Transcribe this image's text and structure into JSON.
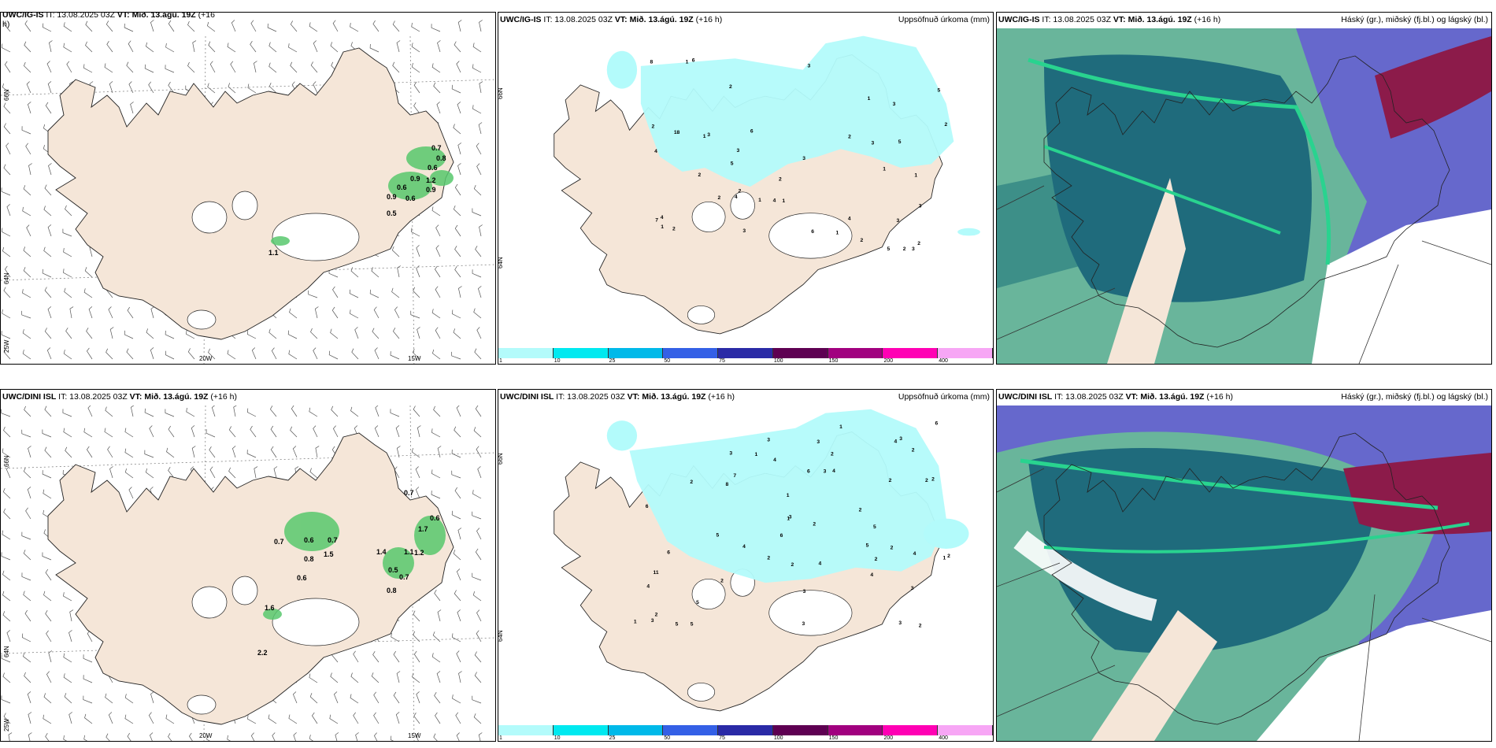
{
  "panels": {
    "top_left": {
      "title_model": "UWC/IG-IS",
      "title_it": "IT: 13.08.2025 03Z",
      "title_vt_label": "VT:",
      "title_vt": "Mið. 13.ágú. 19Z",
      "title_lead": "(+16",
      "title_lead_wrap": "h)",
      "lon_labels": [
        "20W",
        "15W"
      ],
      "lat_labels": [
        "66N",
        "64N",
        "25W"
      ],
      "values": [
        "0.7",
        "0.8",
        "0.6",
        "0.6",
        "0.9",
        "0.6",
        "0.5",
        "1.1",
        "0.9",
        "0.9",
        "1.2"
      ]
    },
    "top_mid": {
      "title_model": "UWC/IG-IS",
      "title_it": "IT: 13.08.2025 03Z",
      "title_vt_label": "VT:",
      "title_vt": "Mið. 13.ágú. 19Z",
      "title_lead": "(+16 h)",
      "right_title": "Uppsöfnuð úrkoma (mm)",
      "lat_labels": [
        "66N",
        "64N"
      ]
    },
    "top_right": {
      "title_model": "UWC/IG-IS",
      "title_it": "IT: 13.08.2025 03Z",
      "title_vt_label": "VT:",
      "title_vt": "Mið. 13.ágú. 19Z",
      "title_lead": "(+16 h)",
      "right_title": "Háský (gr.), miðský (fj.bl.) og lágský (bl.)"
    },
    "bottom_left": {
      "title_model": "UWC/DINI ISL",
      "title_it": "IT: 13.08.2025 03Z",
      "title_vt_label": "VT:",
      "title_vt": "Mið. 13.ágú. 19Z",
      "title_lead": "(+16 h)",
      "lon_labels": [
        "20W",
        "15W"
      ],
      "lat_labels": [
        "66N",
        "64N",
        "25W"
      ],
      "values": [
        "0.7",
        "0.7",
        "0.6",
        "0.7",
        "0.8",
        "1.5",
        "0.6",
        "1.4",
        "1.1",
        "1.2",
        "0.5",
        "0.7",
        "0.8",
        "1.6",
        "2.2",
        "0.6",
        "1.7"
      ]
    },
    "bottom_mid": {
      "title_model": "UWC/DINI ISL",
      "title_it": "IT: 13.08.2025 03Z",
      "title_vt_label": "VT:",
      "title_vt": "Mið. 13.ágú. 19Z",
      "title_lead": "(+16 h)",
      "right_title": "Uppsöfnuð úrkoma (mm)",
      "lat_labels": [
        "66N",
        "64N"
      ]
    },
    "bottom_right": {
      "title_model": "UWC/DINI ISL",
      "title_it": "IT: 13.08.2025 03Z",
      "title_vt_label": "VT:",
      "title_vt": "Mið. 13.ágú. 19Z",
      "title_lead": "(+16 h)",
      "right_title": "Háský (gr.), miðský (fj.bl.) og lágský (bl.)"
    }
  },
  "colorbar": {
    "ticks": [
      "1",
      "10",
      "25",
      "50",
      "75",
      "100",
      "150",
      "200",
      "400"
    ],
    "colors": [
      "#b3fbfb",
      "#00e9f0",
      "#00b9e9",
      "#3460e6",
      "#2a2aa6",
      "#5e0052",
      "#a1007f",
      "#ff00b4",
      "#f7a6f5"
    ]
  },
  "precip_numbers_top": [
    "2",
    "1",
    "1",
    "1",
    "3",
    "2",
    "4",
    "5",
    "4",
    "3",
    "5",
    "3",
    "8",
    "5",
    "3",
    "4",
    "3",
    "2",
    "5",
    "6",
    "2",
    "3",
    "1",
    "2",
    "3",
    "2",
    "6",
    "4",
    "3",
    "7",
    "2",
    "1",
    "2",
    "3",
    "1",
    "2",
    "18",
    "6",
    "2",
    "3",
    "4",
    "2",
    "1",
    "2",
    "1",
    "1"
  ],
  "precip_numbers_bottom": [
    "1",
    "2",
    "2",
    "3",
    "5",
    "6",
    "4",
    "3",
    "3",
    "5",
    "4",
    "2",
    "2",
    "6",
    "3",
    "4",
    "7",
    "5",
    "1",
    "2",
    "3",
    "4",
    "6",
    "5",
    "4",
    "3",
    "2",
    "4",
    "8",
    "2",
    "6",
    "11",
    "3",
    "2",
    "5",
    "2",
    "6",
    "3",
    "2",
    "1",
    "1",
    "3",
    "2",
    "3",
    "3",
    "2",
    "4",
    "2",
    "5",
    "2",
    "1",
    "1",
    "2",
    "4",
    "2"
  ],
  "colors": {
    "land": "#f5e6d8",
    "glacier": "#ffffff",
    "precip_light": "#b3fbfb",
    "cloud_high": "#69b59b",
    "cloud_mid": "#1f6b7c",
    "cloud_low": "#6668cc",
    "cloud_low_dark": "#8c1b4a",
    "cloud_green": "#29d38f"
  }
}
